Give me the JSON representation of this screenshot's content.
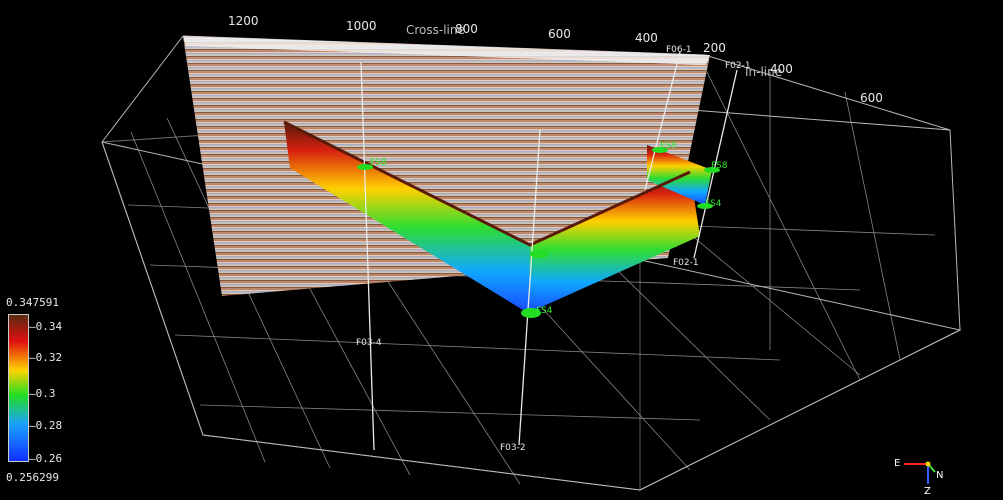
{
  "scene": {
    "crossline_axis": {
      "title": "Cross-line",
      "ticks": [
        "1200",
        "1000",
        "800",
        "600",
        "400",
        "200"
      ]
    },
    "inline_axis": {
      "title": "In-line",
      "ticks": [
        "400",
        "600"
      ]
    },
    "wells": [
      "F06-1",
      "F02-1",
      "F03-4",
      "F03-2",
      "F02-1"
    ],
    "markers": [
      "FS8",
      "FS8",
      "FS8",
      "FS8",
      "FS4",
      "FS4"
    ]
  },
  "colorbar": {
    "title": "0.347591",
    "ticks": [
      "0.34",
      "0.32",
      "0.3",
      "0.28",
      "0.26"
    ],
    "min_label": "0.256299",
    "range": [
      0.256299,
      0.347591
    ]
  },
  "compass": {
    "east": "E",
    "north": "N",
    "z": "Z"
  }
}
